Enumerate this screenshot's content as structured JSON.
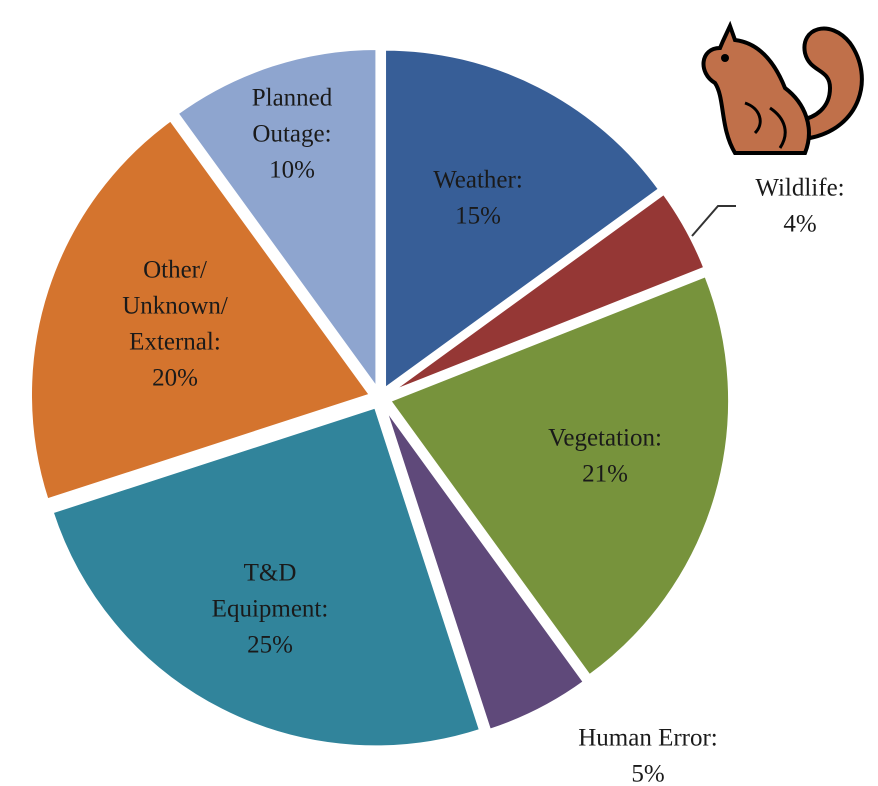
{
  "chart_data": {
    "type": "pie",
    "categories": [
      [
        "Weather:"
      ],
      [
        "Wildlife:"
      ],
      [
        "Vegetation:"
      ],
      [
        "Human Error:"
      ],
      [
        "T&D",
        "Equipment:"
      ],
      [
        "Other/",
        "Unknown/",
        "External:"
      ],
      [
        "Planned",
        "Outage:"
      ]
    ],
    "values": [
      15,
      4,
      21,
      5,
      25,
      20,
      10
    ],
    "value_labels": [
      "15%",
      "4%",
      "21%",
      "5%",
      "25%",
      "20%",
      "10%"
    ],
    "colors": [
      "#375e97",
      "#953735",
      "#77933c",
      "#5f497a",
      "#31849b",
      "#d4742e",
      "#8ea5cf"
    ]
  }
}
